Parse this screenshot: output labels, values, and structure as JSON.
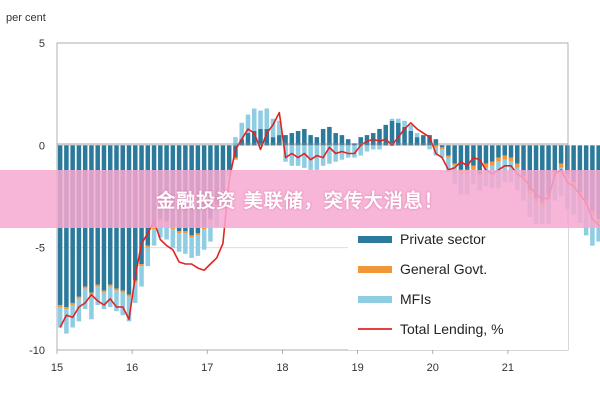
{
  "chart_data": {
    "type": "bar",
    "ylabel": "per cent",
    "ylim": [
      -10,
      5
    ],
    "y_ticks": [
      "5",
      "0",
      "-5",
      "-10"
    ],
    "y_tick_values": [
      5,
      0,
      -5,
      -10
    ],
    "x_ticks": [
      "15",
      "16",
      "17",
      "18",
      "19",
      "20",
      "21"
    ],
    "x_tick_values": [
      2015,
      2016,
      2017,
      2018,
      2019,
      2020,
      2021
    ],
    "x_start": 2015.0,
    "x_step": 0.08333,
    "grid": true,
    "stacked": true,
    "legend_position": "bottom-right",
    "series": [
      {
        "name": "Private sector",
        "kind": "bar",
        "color": "#2b7a9b",
        "values": [
          -7.8,
          -7.9,
          -7.7,
          -7.4,
          -6.9,
          -7.2,
          -6.8,
          -7.1,
          -6.8,
          -7.0,
          -7.1,
          -7.3,
          -6.6,
          -5.8,
          -4.9,
          -4.0,
          -3.6,
          -3.7,
          -4.0,
          -4.2,
          -4.2,
          -4.4,
          -4.3,
          -4.0,
          -3.6,
          -2.9,
          -2.2,
          -1.2,
          -0.6,
          0.3,
          0.6,
          0.7,
          0.8,
          0.8,
          0.4,
          0.5,
          0.5,
          0.6,
          0.7,
          0.8,
          0.5,
          0.4,
          0.8,
          0.9,
          0.6,
          0.5,
          0.3,
          0.1,
          0.4,
          0.5,
          0.6,
          0.8,
          1.0,
          1.2,
          1.1,
          0.9,
          0.7,
          0.4,
          0.5,
          0.5,
          0.3,
          -0.1,
          -0.5,
          -0.9,
          -1.2,
          -1.2,
          -1.0,
          -1.4,
          -0.9,
          -0.8,
          -0.6,
          -0.5,
          -0.6,
          -0.9,
          -1.5,
          -2.2,
          -2.6,
          -2.8,
          -2.4,
          -1.3,
          -0.9,
          -1.4,
          -1.8,
          -2.3,
          -2.7,
          -3.2,
          -3.6,
          -3.8,
          -3.4,
          -2.6,
          -1.7,
          -0.6,
          -0.3,
          -0.2,
          -0.2,
          -0.1
        ]
      },
      {
        "name": "General Govt.",
        "kind": "bar",
        "color": "#f0973a",
        "values": [
          -0.1,
          -0.1,
          -0.1,
          -0.1,
          -0.1,
          -0.1,
          -0.1,
          -0.1,
          -0.1,
          -0.1,
          -0.1,
          -0.1,
          -0.1,
          -0.1,
          -0.1,
          -0.1,
          -0.1,
          -0.1,
          -0.1,
          -0.1,
          -0.1,
          -0.1,
          -0.1,
          -0.1,
          -0.1,
          -0.1,
          -0.1,
          -0.1,
          -0.1,
          0.0,
          0.0,
          0.0,
          0.0,
          0.0,
          0.0,
          0.0,
          0.0,
          0.0,
          0.0,
          0.0,
          0.0,
          0.0,
          0.0,
          0.0,
          0.0,
          0.0,
          0.0,
          0.0,
          0.0,
          0.0,
          0.0,
          0.0,
          0.0,
          0.0,
          0.0,
          0.0,
          0.0,
          0.0,
          0.0,
          0.0,
          -0.1,
          -0.1,
          -0.1,
          -0.1,
          -0.2,
          -0.2,
          -0.2,
          -0.2,
          -0.2,
          -0.2,
          -0.2,
          -0.2,
          -0.2,
          -0.2,
          -0.2,
          -0.2,
          -0.2,
          -0.2,
          -0.2,
          -0.2,
          -0.2,
          -0.2,
          -0.2,
          -0.2,
          -0.2,
          -0.2,
          -0.2,
          -0.2,
          -0.2,
          -0.2,
          -0.2,
          -0.2,
          -0.2,
          -0.2,
          -0.2,
          -0.2
        ]
      },
      {
        "name": "MFIs",
        "kind": "bar",
        "color": "#8fcde3",
        "values": [
          -1.0,
          -1.2,
          -1.1,
          -1.1,
          -1.0,
          -1.2,
          -0.9,
          -0.8,
          -1.0,
          -1.0,
          -1.1,
          -1.2,
          -1.0,
          -1.0,
          -0.9,
          -0.8,
          -0.8,
          -0.8,
          -0.9,
          -0.9,
          -1.0,
          -1.0,
          -1.0,
          -1.0,
          -1.0,
          -1.0,
          -0.8,
          -0.2,
          0.4,
          0.8,
          0.9,
          1.1,
          0.9,
          1.0,
          0.9,
          0.7,
          -0.8,
          -1.0,
          -1.0,
          -1.1,
          -1.2,
          -1.2,
          -1.0,
          -0.9,
          -0.8,
          -0.7,
          -0.6,
          -0.6,
          -0.5,
          -0.3,
          -0.2,
          -0.2,
          0.0,
          0.1,
          0.2,
          0.3,
          0.3,
          0.2,
          0.0,
          -0.2,
          -0.4,
          -0.4,
          -0.7,
          -0.9,
          -1.0,
          -1.0,
          -0.7,
          -0.6,
          -0.9,
          -1.1,
          -1.3,
          -1.1,
          -1.0,
          -1.1,
          -1.0,
          -1.1,
          -1.3,
          -1.6,
          -1.6,
          -1.2,
          -1.4,
          -1.5,
          -1.4,
          -1.3,
          -1.5,
          -1.5,
          -0.9,
          -1.3,
          -1.4,
          -1.2,
          -1.0,
          -1.1,
          -0.7,
          0.3,
          0.5,
          0.6
        ]
      },
      {
        "name": "Total Lending, %",
        "kind": "line",
        "color": "#e02424",
        "values": [
          -8.9,
          -8.3,
          -8.4,
          -7.9,
          -7.7,
          -7.3,
          -7.6,
          -7.8,
          -7.5,
          -7.9,
          -7.9,
          -8.5,
          -6.4,
          -4.8,
          -4.3,
          -3.7,
          -4.6,
          -4.9,
          -5.1,
          -5.7,
          -5.8,
          -5.8,
          -6.0,
          -6.1,
          -5.8,
          -5.5,
          -4.8,
          -1.7,
          -0.2,
          0.3,
          0.8,
          0.6,
          -0.2,
          0.6,
          1.0,
          1.6,
          -0.6,
          -0.4,
          -0.6,
          -0.4,
          -0.7,
          -0.5,
          -0.6,
          -0.1,
          -0.4,
          -0.3,
          -0.4,
          -0.4,
          0.0,
          0.2,
          0.3,
          0.2,
          0.3,
          0.0,
          0.4,
          0.8,
          1.1,
          0.8,
          0.6,
          0.4,
          -0.4,
          -0.6,
          -1.2,
          -1.1,
          -0.8,
          -1.0,
          -0.6,
          -0.7,
          -1.2,
          -1.4,
          -1.2,
          -1.0,
          -1.0,
          -1.4,
          -1.6,
          -2.0,
          -2.4,
          -2.6,
          -2.6,
          -1.4,
          -1.2,
          -1.8,
          -2.0,
          -2.4,
          -2.8,
          -3.6,
          -3.9,
          -4.1,
          -3.3,
          -3.0,
          -2.2,
          -0.6,
          -0.3,
          -0.2,
          0.1,
          0.5
        ]
      }
    ]
  },
  "banner": {
    "text": "金融投资 美联储，突传大消息！"
  }
}
